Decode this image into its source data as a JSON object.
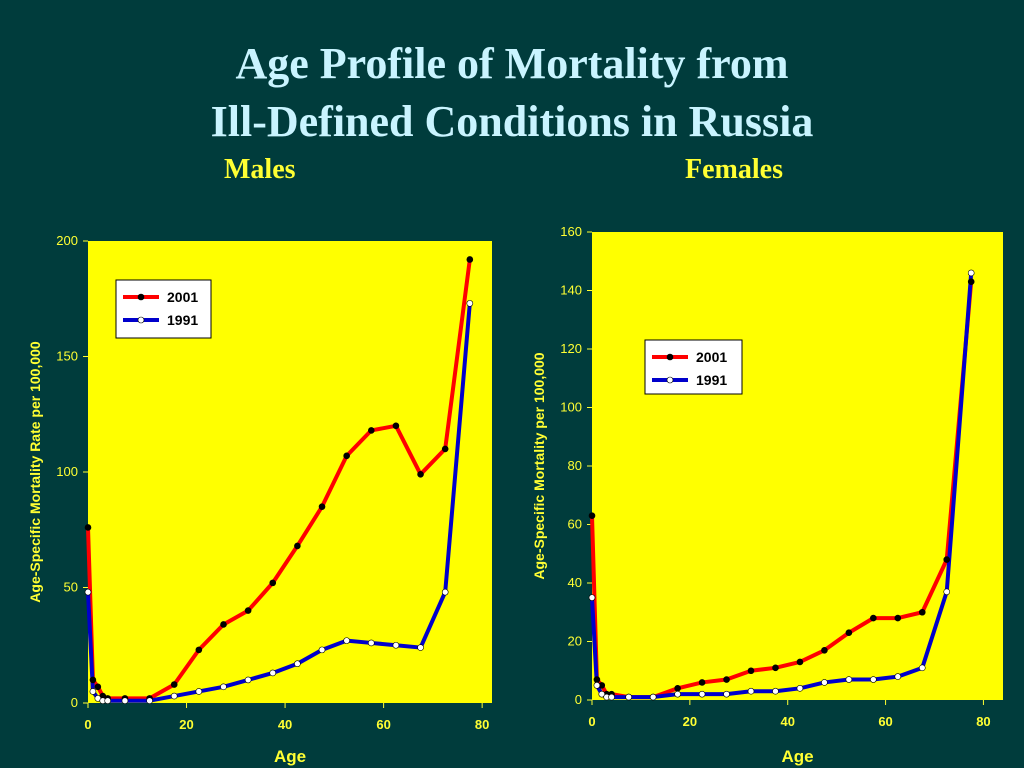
{
  "title_line1": "Age Profile of Mortality from",
  "title_line2": "Ill-Defined Conditions in Russia",
  "colors": {
    "background": "#003c3c",
    "plot_bg": "#ffff00",
    "series_2001": "#ff0000",
    "series_1991": "#0000cc",
    "text_yellow": "#ffff33",
    "title": "#c9f4ff"
  },
  "chart_data": [
    {
      "type": "line",
      "subtitle": "Males",
      "xlabel": "Age",
      "ylabel": "Age-Specific Mortality Rate per 100,000",
      "xlim": [
        0,
        82
      ],
      "ylim": [
        0,
        200
      ],
      "xticks": [
        0,
        20,
        40,
        60,
        80
      ],
      "yticks": [
        0,
        50,
        100,
        150,
        200
      ],
      "legend_position": "top-left",
      "series": [
        {
          "name": "2001",
          "x": [
            0,
            1,
            2,
            3,
            4,
            7.5,
            12.5,
            17.5,
            22.5,
            27.5,
            32.5,
            37.5,
            42.5,
            47.5,
            52.5,
            57.5,
            62.5,
            67.5,
            72.5,
            77.5
          ],
          "values": [
            76,
            10,
            7,
            3,
            2,
            2,
            2,
            8,
            23,
            34,
            40,
            52,
            68,
            85,
            107,
            118,
            120,
            99,
            110,
            192
          ]
        },
        {
          "name": "1991",
          "x": [
            0,
            1,
            2,
            3,
            4,
            7.5,
            12.5,
            17.5,
            22.5,
            27.5,
            32.5,
            37.5,
            42.5,
            47.5,
            52.5,
            57.5,
            62.5,
            67.5,
            72.5,
            77.5
          ],
          "values": [
            48,
            5,
            2,
            1,
            1,
            1,
            1,
            3,
            5,
            7,
            10,
            13,
            17,
            23,
            27,
            26,
            25,
            24,
            48,
            173
          ]
        }
      ]
    },
    {
      "type": "line",
      "subtitle": "Females",
      "xlabel": "Age",
      "ylabel": "Age-Specific Mortality per 100,000",
      "xlim": [
        0,
        84
      ],
      "ylim": [
        0,
        160
      ],
      "xticks": [
        0,
        20,
        40,
        60,
        80
      ],
      "yticks": [
        0,
        20,
        40,
        60,
        80,
        100,
        120,
        140,
        160
      ],
      "legend_position": "upper-middle",
      "series": [
        {
          "name": "2001",
          "x": [
            0,
            1,
            2,
            3,
            4,
            7.5,
            12.5,
            17.5,
            22.5,
            27.5,
            32.5,
            37.5,
            42.5,
            47.5,
            52.5,
            57.5,
            62.5,
            67.5,
            72.5,
            77.5
          ],
          "values": [
            63,
            7,
            5,
            2,
            2,
            1,
            1,
            4,
            6,
            7,
            10,
            11,
            13,
            17,
            23,
            28,
            28,
            30,
            48,
            143
          ]
        },
        {
          "name": "1991",
          "x": [
            0,
            1,
            2,
            3,
            4,
            7.5,
            12.5,
            17.5,
            22.5,
            27.5,
            32.5,
            37.5,
            42.5,
            47.5,
            52.5,
            57.5,
            62.5,
            67.5,
            72.5,
            77.5
          ],
          "values": [
            35,
            5,
            2,
            1,
            1,
            1,
            1,
            2,
            2,
            2,
            3,
            3,
            4,
            6,
            7,
            7,
            8,
            11,
            37,
            146
          ]
        }
      ]
    }
  ]
}
